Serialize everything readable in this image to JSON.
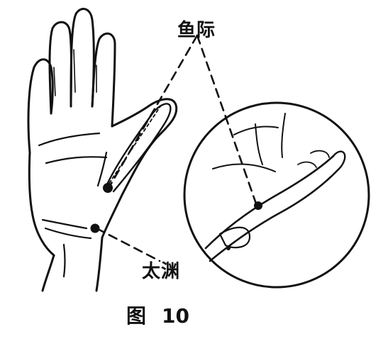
{
  "figure": {
    "caption_char": "图",
    "caption_number": "10",
    "labels": {
      "yuji": "鱼际",
      "taiyuan": "太渊"
    },
    "colors": {
      "ink": "#111111",
      "paper": "#ffffff"
    },
    "icons": [
      "palm-hand-illustration",
      "magnified-thenar-inset"
    ]
  }
}
